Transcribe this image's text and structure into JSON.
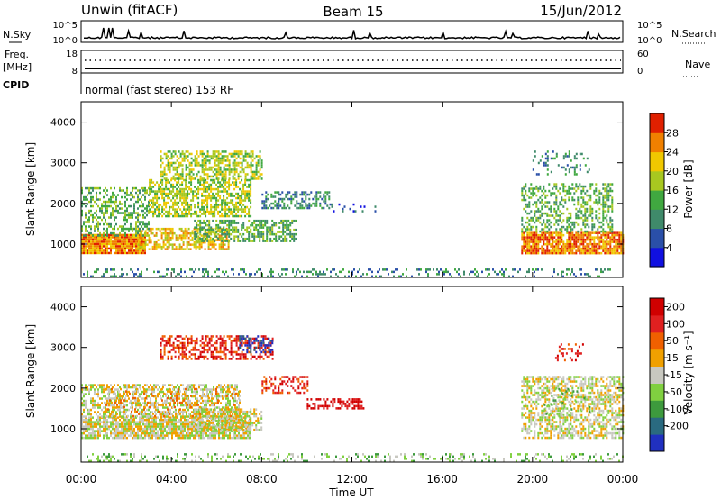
{
  "header": {
    "station": "Unwin (fitACF)",
    "beam": "Beam 15",
    "date": "15/Jun/2012"
  },
  "summary": {
    "nsky_label": "N.Sky",
    "nsky_ticks": [
      "10^5",
      "10^0"
    ],
    "nsearch_label": "N.Search",
    "nsearch_ticks": [
      "10^5",
      "10^0"
    ],
    "freq_label_1": "Freq.",
    "freq_label_2": "[MHz]",
    "freq_ticks": [
      "18",
      "8"
    ],
    "nave_label": "Nave",
    "nave_ticks": [
      "60",
      "0"
    ],
    "cpid_label": "CPID",
    "cpid_text": "normal (fast stereo) 153 RF"
  },
  "chart_data": [
    {
      "type": "heatmap",
      "title": "",
      "xlabel": "Time UT",
      "ylabel": "Slant Range [km]",
      "xticks": [
        "00:00",
        "04:00",
        "08:00",
        "12:00",
        "16:00",
        "20:00",
        "00:00"
      ],
      "yticks": [
        "1000",
        "2000",
        "3000",
        "4000"
      ],
      "xlim_hours": [
        0,
        24
      ],
      "ylim_km": [
        180,
        4500
      ],
      "colorbar": {
        "label": "Power [dB]",
        "ticks": [
          "4",
          "8",
          "12",
          "16",
          "20",
          "24",
          "28"
        ],
        "colors": [
          "#1010e0",
          "#2a4fa8",
          "#3f8a6a",
          "#40a840",
          "#a8c820",
          "#f0c800",
          "#f08000",
          "#e02000"
        ]
      },
      "regions": [
        {
          "t0": 0.0,
          "t1": 2.8,
          "r0": 800,
          "r1": 1250,
          "level": 6,
          "density": 0.95
        },
        {
          "t0": 2.5,
          "t1": 6.5,
          "r0": 900,
          "r1": 1400,
          "level": 5,
          "density": 0.6
        },
        {
          "t0": 0.0,
          "t1": 3.0,
          "r0": 1200,
          "r1": 2400,
          "level": 3,
          "density": 0.45
        },
        {
          "t0": 3.0,
          "t1": 7.5,
          "r0": 1700,
          "r1": 2600,
          "level": 4,
          "density": 0.6
        },
        {
          "t0": 3.5,
          "t1": 8.0,
          "r0": 2600,
          "r1": 3300,
          "level": 4,
          "density": 0.55
        },
        {
          "t0": 5.0,
          "t1": 9.5,
          "r0": 1100,
          "r1": 1600,
          "level": 3,
          "density": 0.55
        },
        {
          "t0": 8.0,
          "t1": 11.0,
          "r0": 1900,
          "r1": 2300,
          "level": 2,
          "density": 0.45
        },
        {
          "t0": 11.0,
          "t1": 13.0,
          "r0": 1800,
          "r1": 2000,
          "level": 1,
          "density": 0.25
        },
        {
          "t0": 19.5,
          "t1": 24.0,
          "r0": 800,
          "r1": 1300,
          "level": 6,
          "density": 0.85
        },
        {
          "t0": 19.5,
          "t1": 23.5,
          "r0": 1300,
          "r1": 2500,
          "level": 3,
          "density": 0.4
        },
        {
          "t0": 20.0,
          "t1": 22.5,
          "r0": 2700,
          "r1": 3300,
          "level": 2,
          "density": 0.2
        },
        {
          "t0": 0.0,
          "t1": 24.0,
          "r0": 200,
          "r1": 400,
          "level": 2,
          "density": 0.25
        }
      ]
    },
    {
      "type": "heatmap",
      "title": "",
      "xlabel": "Time UT",
      "ylabel": "Slant Range [km]",
      "xticks": [
        "00:00",
        "04:00",
        "08:00",
        "12:00",
        "16:00",
        "20:00",
        "00:00"
      ],
      "yticks": [
        "1000",
        "2000",
        "3000",
        "4000"
      ],
      "xlim_hours": [
        0,
        24
      ],
      "ylim_km": [
        180,
        4500
      ],
      "colorbar": {
        "label": "Velocity [m s⁻¹]",
        "ticks": [
          "200",
          "100",
          "50",
          "15",
          "-15",
          "-50",
          "-100",
          "-200"
        ],
        "colors": [
          "#2030c0",
          "#2a6a80",
          "#3d9a3d",
          "#80d040",
          "#c8c8c0",
          "#f0a000",
          "#f06000",
          "#e02020",
          "#d00000"
        ]
      },
      "regions": [
        {
          "t0": 0.0,
          "t1": 7.5,
          "r0": 800,
          "r1": 1300,
          "level": 4,
          "density": 0.85
        },
        {
          "t0": 0.0,
          "t1": 7.0,
          "r0": 1300,
          "r1": 2100,
          "level": 4,
          "density": 0.55
        },
        {
          "t0": 1.0,
          "t1": 7.0,
          "r0": 1300,
          "r1": 2000,
          "level": 5,
          "density": 0.2
        },
        {
          "t0": 3.5,
          "t1": 8.5,
          "r0": 2700,
          "r1": 3300,
          "level": 7,
          "density": 0.5
        },
        {
          "t0": 7.0,
          "t1": 8.5,
          "r0": 2900,
          "r1": 3300,
          "level": 0,
          "density": 0.4
        },
        {
          "t0": 8.0,
          "t1": 10.0,
          "r0": 1900,
          "r1": 2300,
          "level": 7,
          "density": 0.45
        },
        {
          "t0": 10.0,
          "t1": 12.5,
          "r0": 1500,
          "r1": 1750,
          "level": 8,
          "density": 0.5
        },
        {
          "t0": 5.0,
          "t1": 8.0,
          "r0": 1000,
          "r1": 1500,
          "level": 4,
          "density": 0.6
        },
        {
          "t0": 19.5,
          "t1": 24.0,
          "r0": 800,
          "r1": 2300,
          "level": 4,
          "density": 0.55
        },
        {
          "t0": 20.5,
          "t1": 22.5,
          "r0": 1300,
          "r1": 2000,
          "level": 3,
          "density": 0.15
        },
        {
          "t0": 21.0,
          "t1": 22.5,
          "r0": 2700,
          "r1": 3100,
          "level": 7,
          "density": 0.25
        },
        {
          "t0": 0.0,
          "t1": 24.0,
          "r0": 200,
          "r1": 400,
          "level": 3,
          "density": 0.25
        }
      ]
    }
  ]
}
